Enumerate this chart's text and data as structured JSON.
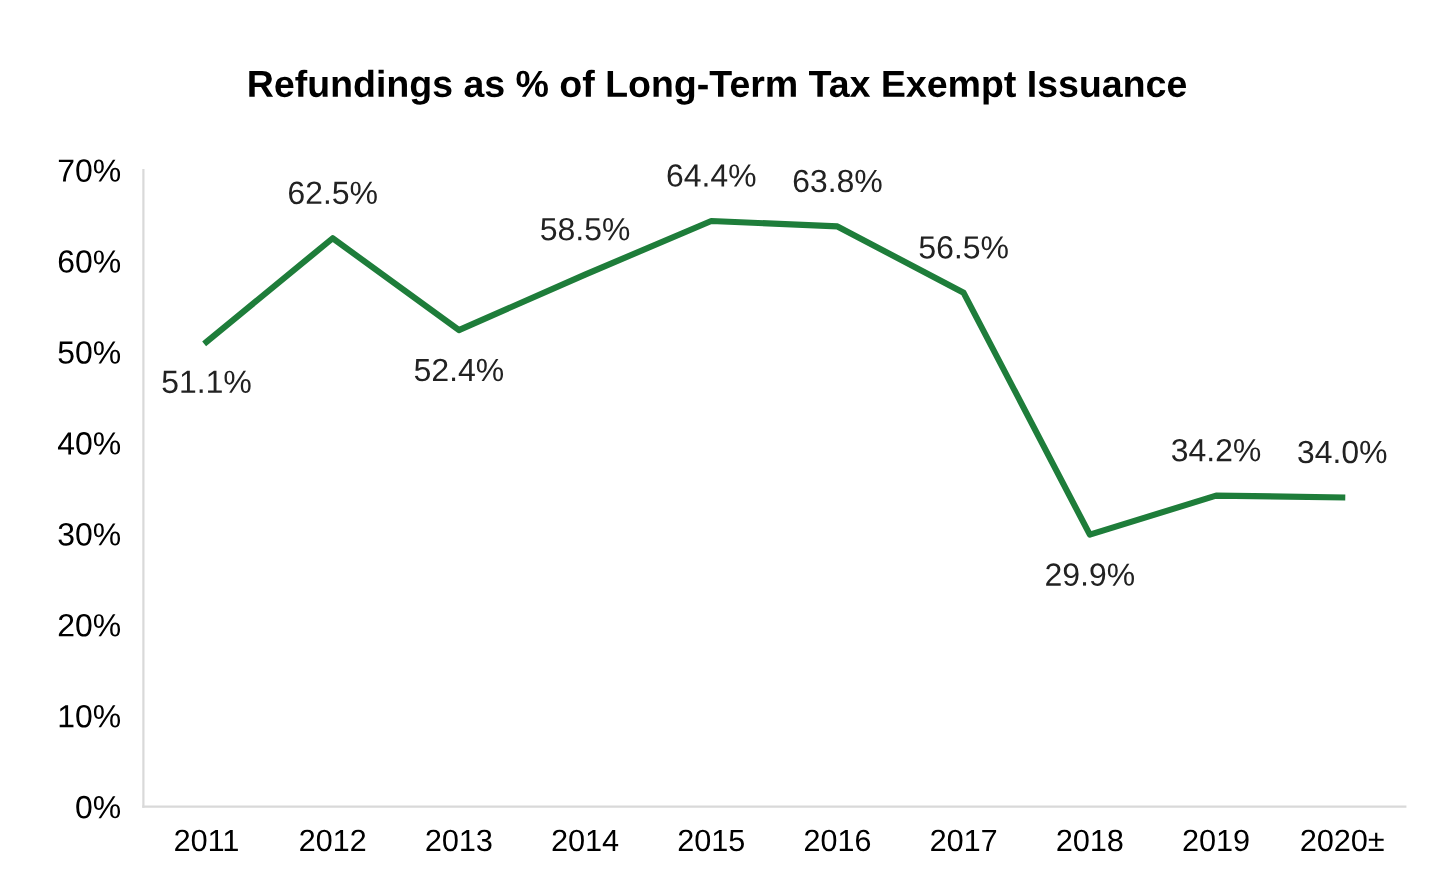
{
  "chart_data": {
    "type": "line",
    "title": "Refundings as % of Long-Term Tax Exempt Issuance",
    "categories": [
      "2011",
      "2012",
      "2013",
      "2014",
      "2015",
      "2016",
      "2017",
      "2018",
      "2019",
      "2020±"
    ],
    "series": [
      {
        "color": "#1e7d3a",
        "values": [
          51.1,
          62.5,
          52.4,
          58.5,
          64.4,
          63.8,
          56.5,
          29.9,
          34.2,
          34.0
        ],
        "value_labels": [
          "51.1%",
          "62.5%",
          "52.4%",
          "58.5%",
          "64.4%",
          "63.8%",
          "56.5%",
          "29.9%",
          "34.2%",
          "34.0%"
        ]
      }
    ],
    "ylim": [
      0,
      70
    ],
    "yticks": [
      {
        "value": 0,
        "label": "0%"
      },
      {
        "value": 10,
        "label": "10%"
      },
      {
        "value": 20,
        "label": "20%"
      },
      {
        "value": 30,
        "label": "30%"
      },
      {
        "value": 40,
        "label": "40%"
      },
      {
        "value": 50,
        "label": "50%"
      },
      {
        "value": 60,
        "label": "60%"
      },
      {
        "value": 70,
        "label": "70%"
      }
    ],
    "marker": "none",
    "line_style": "solid"
  }
}
